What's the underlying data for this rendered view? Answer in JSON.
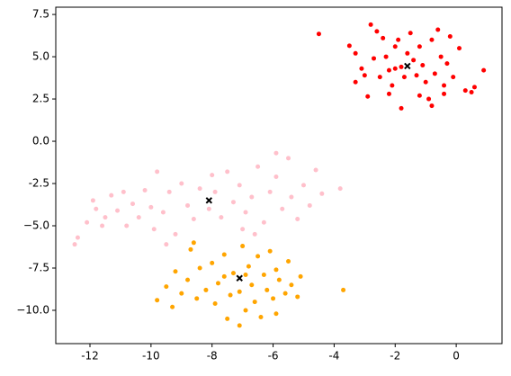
{
  "chart_data": {
    "type": "scatter",
    "xlim": [
      -13.12,
      1.5
    ],
    "ylim": [
      -11.97,
      7.93
    ],
    "xticks": [
      -12,
      -10,
      -8,
      -6,
      -4,
      -2,
      0
    ],
    "yticks": [
      {
        "value": 7.5,
        "label": "7.5"
      },
      {
        "value": 5,
        "label": "5.0"
      },
      {
        "value": 2.5,
        "label": "2.5"
      },
      {
        "value": 0,
        "label": "0.0"
      },
      -2.5,
      {
        "value": -5,
        "label": "−5.0"
      },
      -7.5,
      {
        "value": -10,
        "label": "−10.0"
      }
    ],
    "series": [
      {
        "color": "red",
        "marker": "dot",
        "x": [
          -4.5,
          -3.5,
          -3.3,
          -3.1,
          -3.3,
          -2.9,
          -2.7,
          -2.6,
          -2.4,
          -2.3,
          -2.2,
          -2.1,
          -2.0,
          -1.9,
          -1.8,
          -1.8,
          -1.7,
          -1.6,
          -1.5,
          -1.4,
          -1.3,
          -1.2,
          -1.1,
          -1.0,
          -0.9,
          -0.8,
          -0.7,
          -0.6,
          -0.5,
          -0.4,
          -0.3,
          -0.2,
          -0.1,
          0.1,
          0.3,
          0.5,
          0.6,
          0.9,
          -2.8,
          -2.5,
          -2.0,
          -1.2,
          -0.8,
          -0.4,
          -3.0,
          -2.2
        ],
        "y": [
          6.35,
          5.65,
          5.2,
          4.3,
          3.5,
          2.65,
          4.9,
          6.5,
          6.1,
          5.0,
          4.2,
          3.3,
          5.6,
          6.0,
          4.4,
          1.95,
          3.8,
          5.2,
          6.4,
          4.8,
          3.9,
          5.6,
          4.5,
          3.5,
          2.5,
          6.0,
          4.0,
          6.6,
          5.0,
          3.3,
          4.6,
          6.2,
          3.8,
          5.5,
          3.0,
          2.9,
          3.2,
          4.2,
          6.9,
          3.8,
          4.3,
          2.7,
          2.1,
          2.8,
          3.9,
          2.8
        ]
      },
      {
        "color": "pink",
        "marker": "dot",
        "x": [
          -12.5,
          -12.4,
          -12.1,
          -11.9,
          -11.8,
          -11.6,
          -11.5,
          -11.3,
          -11.1,
          -10.9,
          -10.8,
          -10.6,
          -10.4,
          -10.2,
          -10.0,
          -9.9,
          -9.8,
          -9.6,
          -9.4,
          -9.2,
          -9.0,
          -8.8,
          -8.6,
          -8.4,
          -8.1,
          -7.9,
          -7.7,
          -7.5,
          -7.3,
          -7.1,
          -6.9,
          -6.7,
          -6.5,
          -6.3,
          -6.1,
          -5.9,
          -5.7,
          -5.5,
          -5.4,
          -5.2,
          -5.0,
          -4.8,
          -4.6,
          -4.4,
          -3.8,
          -5.9,
          -8.0,
          -9.5,
          -7.0,
          -6.6
        ],
        "y": [
          -6.1,
          -5.7,
          -4.8,
          -3.5,
          -4.0,
          -5.0,
          -4.5,
          -3.2,
          -4.1,
          -3.0,
          -5.0,
          -3.7,
          -4.5,
          -2.9,
          -3.9,
          -5.2,
          -1.8,
          -4.2,
          -3.0,
          -5.5,
          -2.5,
          -3.8,
          -4.6,
          -2.8,
          -4.0,
          -3.0,
          -4.5,
          -1.8,
          -3.6,
          -2.6,
          -4.2,
          -3.3,
          -1.5,
          -4.8,
          -3.0,
          -2.1,
          -4.0,
          -1.0,
          -3.3,
          -4.6,
          -2.6,
          -3.8,
          -1.7,
          -3.1,
          -2.8,
          -0.7,
          -2.0,
          -6.1,
          -5.2,
          -5.5
        ]
      },
      {
        "color": "orange",
        "marker": "dot",
        "x": [
          -9.8,
          -9.5,
          -9.3,
          -9.2,
          -9.0,
          -8.8,
          -8.7,
          -8.5,
          -8.4,
          -8.2,
          -8.0,
          -7.9,
          -7.8,
          -7.6,
          -7.5,
          -7.4,
          -7.3,
          -7.1,
          -7.0,
          -6.9,
          -6.8,
          -6.7,
          -6.6,
          -6.5,
          -6.4,
          -6.3,
          -6.2,
          -6.1,
          -6.0,
          -5.9,
          -5.8,
          -5.6,
          -5.5,
          -5.4,
          -5.2,
          -5.1,
          -3.7,
          -7.1,
          -8.6,
          -5.9,
          -6.9,
          -7.6
        ],
        "y": [
          -9.4,
          -8.6,
          -9.8,
          -7.7,
          -9.0,
          -8.2,
          -6.4,
          -9.3,
          -7.5,
          -8.8,
          -7.2,
          -9.6,
          -8.4,
          -6.7,
          -10.5,
          -9.1,
          -7.8,
          -8.9,
          -6.2,
          -10.0,
          -7.4,
          -8.5,
          -9.5,
          -6.8,
          -10.4,
          -7.9,
          -8.8,
          -6.5,
          -9.3,
          -7.6,
          -8.2,
          -9.0,
          -7.1,
          -8.5,
          -9.2,
          -8.0,
          -8.8,
          -10.9,
          -6.0,
          -10.2,
          -7.9,
          -8.0
        ]
      },
      {
        "color": "black",
        "marker": "x",
        "x": [
          -1.6,
          -8.1,
          -7.1
        ],
        "y": [
          4.45,
          -3.5,
          -8.1
        ]
      }
    ]
  }
}
